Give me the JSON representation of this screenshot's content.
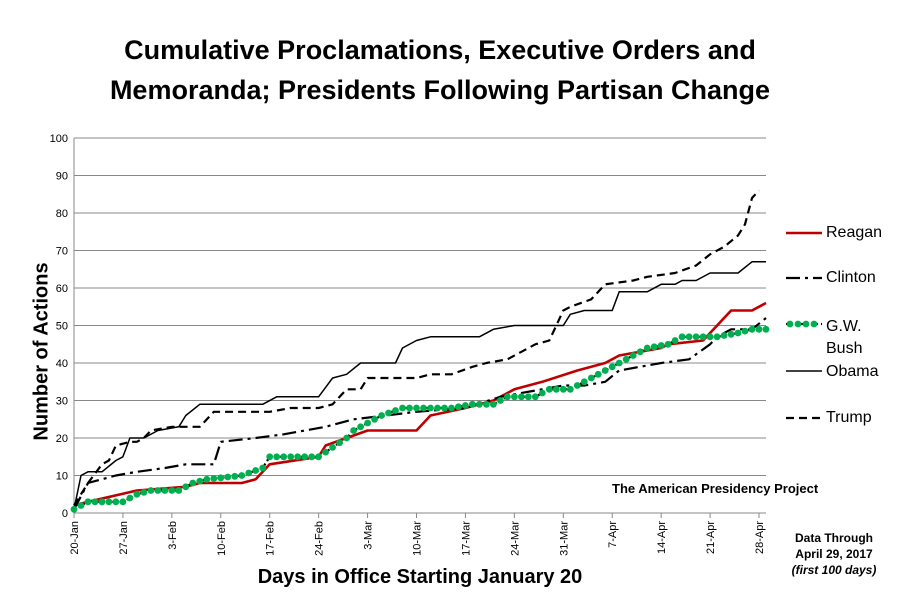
{
  "title_line1": "Cumulative Proclamations, Executive Orders and",
  "title_line2": "Memoranda; Presidents Following Partisan Change",
  "source": "The American Presidency Project",
  "note": {
    "line1": "Data Through",
    "line2": "April 29, 2017",
    "line3": "(first 100 days)"
  },
  "chart_data": {
    "type": "line",
    "xlabel": "Days in Office Starting January 20",
    "ylabel": "Number of Actions",
    "ylim": [
      0,
      100
    ],
    "yticks": [
      0,
      10,
      20,
      30,
      40,
      50,
      60,
      70,
      80,
      90,
      100
    ],
    "xlim": [
      "20-Jan",
      "29-Apr"
    ],
    "xticks": [
      "20-Jan",
      "27-Jan",
      "3-Feb",
      "10-Feb",
      "17-Feb",
      "24-Feb",
      "3-Mar",
      "10-Mar",
      "17-Mar",
      "24-Mar",
      "31-Mar",
      "7-Apr",
      "14-Apr",
      "21-Apr",
      "28-Apr"
    ],
    "grid": true,
    "legend_position": "right",
    "series": [
      {
        "name": "Reagan",
        "color": "#c00000",
        "style": "solid-thick",
        "points": [
          [
            "20-Jan",
            2
          ],
          [
            "22-Jan",
            3
          ],
          [
            "29-Jan",
            6
          ],
          [
            "5-Feb",
            7
          ],
          [
            "7-Feb",
            8
          ],
          [
            "13-Feb",
            8
          ],
          [
            "15-Feb",
            9
          ],
          [
            "17-Feb",
            13
          ],
          [
            "24-Feb",
            15
          ],
          [
            "25-Feb",
            18
          ],
          [
            "28-Feb",
            20
          ],
          [
            "3-Mar",
            22
          ],
          [
            "10-Mar",
            22
          ],
          [
            "12-Mar",
            26
          ],
          [
            "17-Mar",
            28
          ],
          [
            "21-Mar",
            30
          ],
          [
            "24-Mar",
            33
          ],
          [
            "28-Mar",
            35
          ],
          [
            "2-Apr",
            38
          ],
          [
            "6-Apr",
            40
          ],
          [
            "8-Apr",
            42
          ],
          [
            "14-Apr",
            44
          ],
          [
            "15-Apr",
            45
          ],
          [
            "20-Apr",
            46
          ],
          [
            "22-Apr",
            50
          ],
          [
            "24-Apr",
            54
          ],
          [
            "27-Apr",
            54
          ],
          [
            "29-Apr",
            56
          ]
        ]
      },
      {
        "name": "Clinton",
        "color": "#000000",
        "style": "dash-dot",
        "points": [
          [
            "20-Jan",
            1
          ],
          [
            "22-Jan",
            8
          ],
          [
            "26-Jan",
            10
          ],
          [
            "29-Jan",
            11
          ],
          [
            "2-Feb",
            12
          ],
          [
            "5-Feb",
            13
          ],
          [
            "9-Feb",
            13
          ],
          [
            "10-Feb",
            19
          ],
          [
            "15-Feb",
            20
          ],
          [
            "19-Feb",
            21
          ],
          [
            "25-Feb",
            23
          ],
          [
            "1-Mar",
            25
          ],
          [
            "10-Mar",
            27
          ],
          [
            "17-Mar",
            28
          ],
          [
            "22-Mar",
            31
          ],
          [
            "31-Mar",
            34
          ],
          [
            "3-Apr",
            34
          ],
          [
            "6-Apr",
            35
          ],
          [
            "8-Apr",
            38
          ],
          [
            "14-Apr",
            40
          ],
          [
            "18-Apr",
            41
          ],
          [
            "21-Apr",
            45
          ],
          [
            "22-Apr",
            47
          ],
          [
            "24-Apr",
            49
          ],
          [
            "27-Apr",
            49
          ],
          [
            "29-Apr",
            52
          ]
        ]
      },
      {
        "name": "G.W. Bush",
        "color": "#00b050",
        "style": "dotted-markers",
        "points": [
          [
            "20-Jan",
            1
          ],
          [
            "22-Jan",
            3
          ],
          [
            "27-Jan",
            3
          ],
          [
            "29-Jan",
            5
          ],
          [
            "31-Jan",
            6
          ],
          [
            "4-Feb",
            6
          ],
          [
            "6-Feb",
            8
          ],
          [
            "8-Feb",
            9
          ],
          [
            "13-Feb",
            10
          ],
          [
            "16-Feb",
            12
          ],
          [
            "17-Feb",
            15
          ],
          [
            "24-Feb",
            15
          ],
          [
            "28-Feb",
            20
          ],
          [
            "1-Mar",
            22
          ],
          [
            "5-Mar",
            26
          ],
          [
            "8-Mar",
            28
          ],
          [
            "15-Mar",
            28
          ],
          [
            "18-Mar",
            29
          ],
          [
            "21-Mar",
            29
          ],
          [
            "23-Mar",
            31
          ],
          [
            "27-Mar",
            31
          ],
          [
            "29-Mar",
            33
          ],
          [
            "1-Apr",
            33
          ],
          [
            "4-Apr",
            36
          ],
          [
            "7-Apr",
            39
          ],
          [
            "10-Apr",
            42
          ],
          [
            "12-Apr",
            44
          ],
          [
            "15-Apr",
            45
          ],
          [
            "17-Apr",
            47
          ],
          [
            "22-Apr",
            47
          ],
          [
            "25-Apr",
            48
          ],
          [
            "27-Apr",
            49
          ],
          [
            "29-Apr",
            49
          ]
        ]
      },
      {
        "name": "Obama",
        "color": "#000000",
        "style": "solid-thin",
        "points": [
          [
            "20-Jan",
            1
          ],
          [
            "21-Jan",
            10
          ],
          [
            "22-Jan",
            11
          ],
          [
            "24-Jan",
            11
          ],
          [
            "26-Jan",
            14
          ],
          [
            "27-Jan",
            15
          ],
          [
            "28-Jan",
            20
          ],
          [
            "30-Jan",
            20
          ],
          [
            "1-Feb",
            22
          ],
          [
            "4-Feb",
            23
          ],
          [
            "5-Feb",
            26
          ],
          [
            "7-Feb",
            29
          ],
          [
            "16-Feb",
            29
          ],
          [
            "18-Feb",
            31
          ],
          [
            "24-Feb",
            31
          ],
          [
            "26-Feb",
            36
          ],
          [
            "28-Feb",
            37
          ],
          [
            "2-Mar",
            40
          ],
          [
            "7-Mar",
            40
          ],
          [
            "8-Mar",
            44
          ],
          [
            "10-Mar",
            46
          ],
          [
            "12-Mar",
            47
          ],
          [
            "19-Mar",
            47
          ],
          [
            "21-Mar",
            49
          ],
          [
            "24-Mar",
            50
          ],
          [
            "31-Mar",
            50
          ],
          [
            "1-Apr",
            53
          ],
          [
            "3-Apr",
            54
          ],
          [
            "7-Apr",
            54
          ],
          [
            "8-Apr",
            59
          ],
          [
            "12-Apr",
            59
          ],
          [
            "14-Apr",
            61
          ],
          [
            "16-Apr",
            61
          ],
          [
            "17-Apr",
            62
          ],
          [
            "19-Apr",
            62
          ],
          [
            "21-Apr",
            64
          ],
          [
            "25-Apr",
            64
          ],
          [
            "27-Apr",
            67
          ],
          [
            "29-Apr",
            67
          ]
        ]
      },
      {
        "name": "Trump",
        "color": "#000000",
        "style": "dashed",
        "points": [
          [
            "20-Jan",
            2
          ],
          [
            "22-Jan",
            8
          ],
          [
            "24-Jan",
            13
          ],
          [
            "25-Jan",
            14
          ],
          [
            "26-Jan",
            18
          ],
          [
            "28-Jan",
            19
          ],
          [
            "29-Jan",
            19
          ],
          [
            "30-Jan",
            20
          ],
          [
            "31-Jan",
            22
          ],
          [
            "3-Feb",
            23
          ],
          [
            "7-Feb",
            23
          ],
          [
            "9-Feb",
            27
          ],
          [
            "17-Feb",
            27
          ],
          [
            "20-Feb",
            28
          ],
          [
            "24-Feb",
            28
          ],
          [
            "26-Feb",
            29
          ],
          [
            "28-Feb",
            33
          ],
          [
            "2-Mar",
            33
          ],
          [
            "3-Mar",
            36
          ],
          [
            "10-Mar",
            36
          ],
          [
            "12-Mar",
            37
          ],
          [
            "15-Mar",
            37
          ],
          [
            "18-Mar",
            39
          ],
          [
            "20-Mar",
            40
          ],
          [
            "23-Mar",
            41
          ],
          [
            "25-Mar",
            43
          ],
          [
            "27-Mar",
            45
          ],
          [
            "29-Mar",
            46
          ],
          [
            "31-Mar",
            54
          ],
          [
            "1-Apr",
            55
          ],
          [
            "4-Apr",
            57
          ],
          [
            "6-Apr",
            61
          ],
          [
            "10-Apr",
            62
          ],
          [
            "12-Apr",
            63
          ],
          [
            "16-Apr",
            64
          ],
          [
            "19-Apr",
            66
          ],
          [
            "21-Apr",
            69
          ],
          [
            "23-Apr",
            71
          ],
          [
            "25-Apr",
            74
          ],
          [
            "26-Apr",
            77
          ],
          [
            "27-Apr",
            84
          ],
          [
            "28-Apr",
            86
          ]
        ]
      }
    ]
  }
}
